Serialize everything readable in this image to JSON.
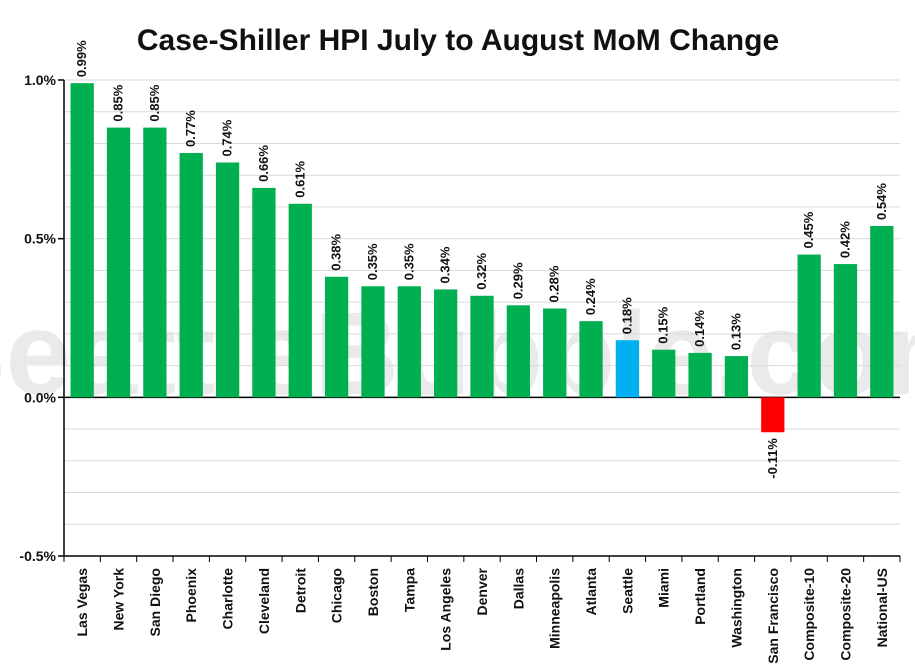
{
  "chart_data": {
    "type": "bar",
    "title": "Case-Shiller HPI July to August MoM Change",
    "xlabel": "",
    "ylabel": "",
    "ylim": [
      -0.5,
      1.0
    ],
    "yticks": [
      -0.5,
      0.0,
      0.5,
      1.0
    ],
    "ytick_labels": [
      "-0.5%",
      "0.0%",
      "0.5%",
      "1.0%"
    ],
    "grid": true,
    "watermark": "SeattleBubble.com",
    "categories": [
      "Las Vegas",
      "New York",
      "San Diego",
      "Phoenix",
      "Charlotte",
      "Cleveland",
      "Detroit",
      "Chicago",
      "Boston",
      "Tampa",
      "Los Angeles",
      "Denver",
      "Dallas",
      "Minneapolis",
      "Atlanta",
      "Seattle",
      "Miami",
      "Portland",
      "Washington",
      "San Francisco",
      "Composite-10",
      "Composite-20",
      "National-US"
    ],
    "values": [
      0.99,
      0.85,
      0.85,
      0.77,
      0.74,
      0.66,
      0.61,
      0.38,
      0.35,
      0.35,
      0.34,
      0.32,
      0.29,
      0.28,
      0.24,
      0.18,
      0.15,
      0.14,
      0.13,
      -0.11,
      0.45,
      0.42,
      0.54
    ],
    "value_labels": [
      "0.99%",
      "0.85%",
      "0.85%",
      "0.77%",
      "0.74%",
      "0.66%",
      "0.61%",
      "0.38%",
      "0.35%",
      "0.35%",
      "0.34%",
      "0.32%",
      "0.29%",
      "0.28%",
      "0.24%",
      "0.18%",
      "0.15%",
      "0.14%",
      "0.13%",
      "-0.11%",
      "0.45%",
      "0.42%",
      "0.54%"
    ],
    "colors": {
      "default": "#00b050",
      "highlight": "#00b0f0",
      "negative": "#ff0000",
      "grid": "#d9d9d9",
      "axis": "#000000"
    },
    "highlight_category": "Seattle"
  }
}
